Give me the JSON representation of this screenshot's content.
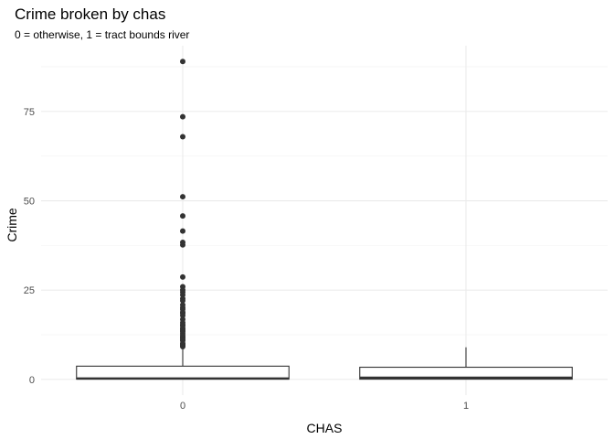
{
  "chart_data": {
    "type": "boxplot",
    "title": "Crime broken by chas",
    "subtitle": "0 = otherwise, 1 = tract bounds river",
    "xlabel": "CHAS",
    "ylabel": "Crime",
    "categories": [
      "0",
      "1"
    ],
    "ylim": [
      -4.4,
      93.4
    ],
    "yticks": [
      0,
      25,
      50,
      75
    ],
    "ytick_labels": [
      "0",
      "25",
      "50",
      "75"
    ],
    "grid": true,
    "boxes": [
      {
        "category": "0",
        "min": 0.006,
        "q1": 0.08,
        "median": 0.25,
        "q3": 3.7,
        "whisker_high": 9.0,
        "outliers": [
          88.98,
          73.53,
          67.92,
          51.14,
          45.75,
          41.53,
          38.35,
          37.66,
          28.66,
          25.95,
          25.05,
          24.39,
          23.65,
          22.6,
          22.05,
          20.85,
          20.08,
          19.61,
          18.81,
          18.5,
          17.87,
          16.81,
          15.88,
          15.29,
          15.02,
          14.33,
          14.05,
          13.68,
          13.36,
          12.8,
          12.25,
          11.81,
          11.58,
          11.11,
          10.83,
          10.06,
          9.92,
          9.59,
          9.34,
          9.17
        ]
      },
      {
        "category": "1",
        "min": 0.015,
        "q1": 0.06,
        "median": 0.45,
        "q3": 3.4,
        "whisker_high": 8.98,
        "outliers": []
      }
    ],
    "colors": {
      "box_fill": "#ffffff",
      "box_line": "#333333",
      "outlier": "#333333",
      "grid_major": "#ebebeb",
      "grid_minor": "#f5f5f5",
      "tick_text": "#4d4d4d"
    }
  }
}
